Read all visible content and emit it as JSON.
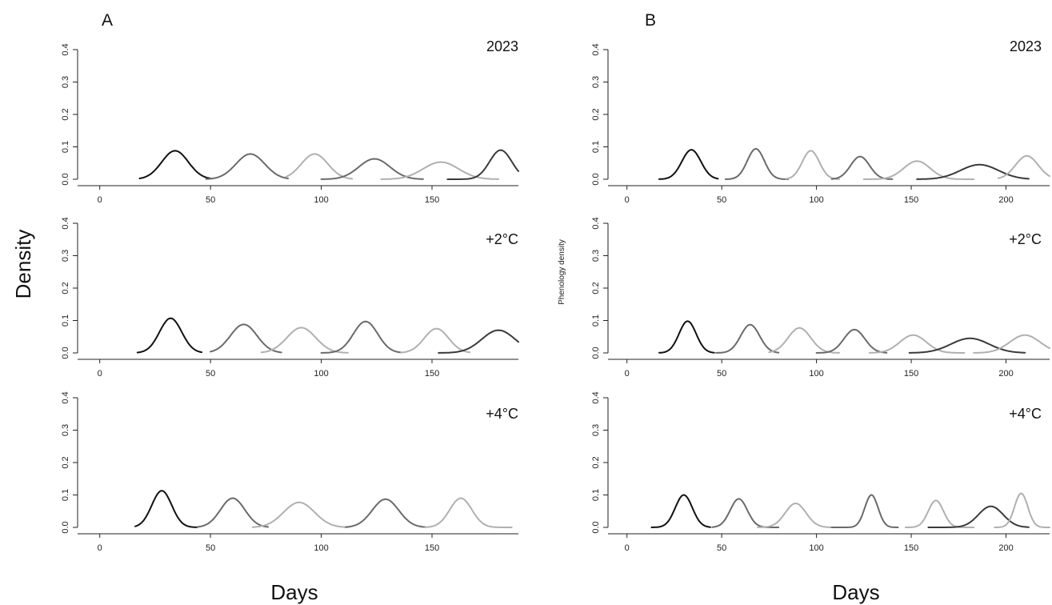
{
  "figure": {
    "panel_a_letter": "A",
    "panel_b_letter": "B",
    "panel_a_ylabel": "Density",
    "panel_b_ylabel": "Phenology density",
    "panel_a_xlabel": "Days",
    "panel_b_xlabel": "Days"
  },
  "chart_data": [
    {
      "panel": "A",
      "type": "line",
      "title": "2023",
      "xlim": [
        -10,
        189
      ],
      "ylim": [
        0,
        0.4
      ],
      "xticks": [
        0,
        50,
        100,
        150
      ],
      "yticks": [
        0.0,
        0.1,
        0.2,
        0.3,
        0.4
      ],
      "series": [
        {
          "color": "#111111",
          "mu": 34,
          "sd": 6.0,
          "peak": 0.088,
          "x_range": [
            18,
            50
          ]
        },
        {
          "color": "#6a6a6a",
          "mu": 68,
          "sd": 6.5,
          "peak": 0.078,
          "x_range": [
            48,
            85
          ]
        },
        {
          "color": "#b0b0b0",
          "mu": 97,
          "sd": 6.0,
          "peak": 0.078,
          "x_range": [
            84,
            114
          ]
        },
        {
          "color": "#6a6a6a",
          "mu": 124,
          "sd": 7.0,
          "peak": 0.063,
          "x_range": [
            100,
            146
          ]
        },
        {
          "color": "#b0b0b0",
          "mu": 154,
          "sd": 8.0,
          "peak": 0.053,
          "x_range": [
            127,
            180
          ]
        },
        {
          "color": "#3a3a3a",
          "mu": 181,
          "sd": 5.0,
          "peak": 0.09,
          "x_range": [
            157,
            189
          ]
        }
      ]
    },
    {
      "panel": "A",
      "type": "line",
      "title": "+2°C",
      "xlim": [
        -10,
        189
      ],
      "ylim": [
        0,
        0.4
      ],
      "xticks": [
        0,
        50,
        100,
        150
      ],
      "yticks": [
        0.0,
        0.1,
        0.2,
        0.3,
        0.4
      ],
      "series": [
        {
          "color": "#111111",
          "mu": 32,
          "sd": 5.0,
          "peak": 0.107,
          "x_range": [
            17,
            46
          ]
        },
        {
          "color": "#6a6a6a",
          "mu": 65,
          "sd": 6.0,
          "peak": 0.088,
          "x_range": [
            50,
            82
          ]
        },
        {
          "color": "#b0b0b0",
          "mu": 91,
          "sd": 6.5,
          "peak": 0.078,
          "x_range": [
            73,
            112
          ]
        },
        {
          "color": "#6a6a6a",
          "mu": 120,
          "sd": 5.5,
          "peak": 0.097,
          "x_range": [
            100,
            136
          ]
        },
        {
          "color": "#b0b0b0",
          "mu": 152,
          "sd": 5.5,
          "peak": 0.075,
          "x_range": [
            136,
            167
          ]
        },
        {
          "color": "#3a3a3a",
          "mu": 180,
          "sd": 7.5,
          "peak": 0.07,
          "x_range": [
            153,
            189
          ]
        }
      ]
    },
    {
      "panel": "A",
      "type": "line",
      "title": "+4°C",
      "xlim": [
        -10,
        189
      ],
      "ylim": [
        0,
        0.4
      ],
      "xticks": [
        0,
        50,
        100,
        150
      ],
      "yticks": [
        0.0,
        0.1,
        0.2,
        0.3,
        0.4
      ],
      "series": [
        {
          "color": "#111111",
          "mu": 28,
          "sd": 4.5,
          "peak": 0.113,
          "x_range": [
            16,
            44
          ]
        },
        {
          "color": "#6a6a6a",
          "mu": 60,
          "sd": 5.5,
          "peak": 0.09,
          "x_range": [
            44,
            76
          ]
        },
        {
          "color": "#b0b0b0",
          "mu": 90,
          "sd": 7.0,
          "peak": 0.077,
          "x_range": [
            69,
            112
          ]
        },
        {
          "color": "#6a6a6a",
          "mu": 129,
          "sd": 6.0,
          "peak": 0.087,
          "x_range": [
            111,
            147
          ]
        },
        {
          "color": "#b0b0b0",
          "mu": 163,
          "sd": 5.0,
          "peak": 0.09,
          "x_range": [
            147,
            186
          ]
        }
      ]
    },
    {
      "panel": "B",
      "type": "line",
      "title": "2023",
      "xlim": [
        -10,
        223
      ],
      "ylim": [
        0,
        0.4
      ],
      "xticks": [
        0,
        50,
        100,
        150,
        200
      ],
      "yticks": [
        0.0,
        0.1,
        0.2,
        0.3,
        0.4
      ],
      "series": [
        {
          "color": "#111111",
          "mu": 34,
          "sd": 5.0,
          "peak": 0.091,
          "x_range": [
            17,
            48
          ]
        },
        {
          "color": "#6a6a6a",
          "mu": 68,
          "sd": 4.5,
          "peak": 0.094,
          "x_range": [
            52,
            85
          ]
        },
        {
          "color": "#b0b0b0",
          "mu": 97,
          "sd": 4.5,
          "peak": 0.088,
          "x_range": [
            84,
            112
          ]
        },
        {
          "color": "#6a6a6a",
          "mu": 123,
          "sd": 5.0,
          "peak": 0.07,
          "x_range": [
            108,
            140
          ]
        },
        {
          "color": "#b0b0b0",
          "mu": 153,
          "sd": 7.0,
          "peak": 0.056,
          "x_range": [
            125,
            183
          ]
        },
        {
          "color": "#3a3a3a",
          "mu": 186,
          "sd": 10.0,
          "peak": 0.045,
          "x_range": [
            153,
            212
          ]
        },
        {
          "color": "#b0b0b0",
          "mu": 211,
          "sd": 6.0,
          "peak": 0.072,
          "x_range": [
            196,
            223
          ]
        }
      ]
    },
    {
      "panel": "B",
      "type": "line",
      "title": "+2°C",
      "xlim": [
        -10,
        223
      ],
      "ylim": [
        0,
        0.4
      ],
      "xticks": [
        0,
        50,
        100,
        150,
        200
      ],
      "yticks": [
        0.0,
        0.1,
        0.2,
        0.3,
        0.4
      ],
      "series": [
        {
          "color": "#111111",
          "mu": 32,
          "sd": 4.5,
          "peak": 0.098,
          "x_range": [
            17,
            46
          ]
        },
        {
          "color": "#6a6a6a",
          "mu": 65,
          "sd": 5.0,
          "peak": 0.087,
          "x_range": [
            47,
            80
          ]
        },
        {
          "color": "#b0b0b0",
          "mu": 91,
          "sd": 6.0,
          "peak": 0.077,
          "x_range": [
            75,
            112
          ]
        },
        {
          "color": "#6a6a6a",
          "mu": 120,
          "sd": 5.5,
          "peak": 0.072,
          "x_range": [
            100,
            137
          ]
        },
        {
          "color": "#b0b0b0",
          "mu": 151,
          "sd": 7.0,
          "peak": 0.055,
          "x_range": [
            128,
            178
          ]
        },
        {
          "color": "#3a3a3a",
          "mu": 181,
          "sd": 10.0,
          "peak": 0.045,
          "x_range": [
            149,
            210
          ]
        },
        {
          "color": "#b0b0b0",
          "mu": 210,
          "sd": 8.0,
          "peak": 0.055,
          "x_range": [
            183,
            223
          ]
        }
      ]
    },
    {
      "panel": "B",
      "type": "line",
      "title": "+4°C",
      "xlim": [
        -10,
        223
      ],
      "ylim": [
        0,
        0.4
      ],
      "xticks": [
        0,
        50,
        100,
        150,
        200
      ],
      "yticks": [
        0.0,
        0.1,
        0.2,
        0.3,
        0.4
      ],
      "series": [
        {
          "color": "#111111",
          "mu": 30,
          "sd": 4.5,
          "peak": 0.1,
          "x_range": [
            13,
            44
          ]
        },
        {
          "color": "#6a6a6a",
          "mu": 59,
          "sd": 4.5,
          "peak": 0.088,
          "x_range": [
            45,
            80
          ]
        },
        {
          "color": "#b0b0b0",
          "mu": 89,
          "sd": 5.5,
          "peak": 0.074,
          "x_range": [
            69,
            113
          ]
        },
        {
          "color": "#6a6a6a",
          "mu": 129,
          "sd": 3.5,
          "peak": 0.1,
          "x_range": [
            108,
            143
          ]
        },
        {
          "color": "#b0b0b0",
          "mu": 163,
          "sd": 4.0,
          "peak": 0.083,
          "x_range": [
            147,
            183
          ]
        },
        {
          "color": "#3a3a3a",
          "mu": 192,
          "sd": 6.5,
          "peak": 0.065,
          "x_range": [
            159,
            212
          ]
        },
        {
          "color": "#b0b0b0",
          "mu": 208,
          "sd": 3.5,
          "peak": 0.105,
          "x_range": [
            194,
            223
          ]
        }
      ]
    }
  ]
}
